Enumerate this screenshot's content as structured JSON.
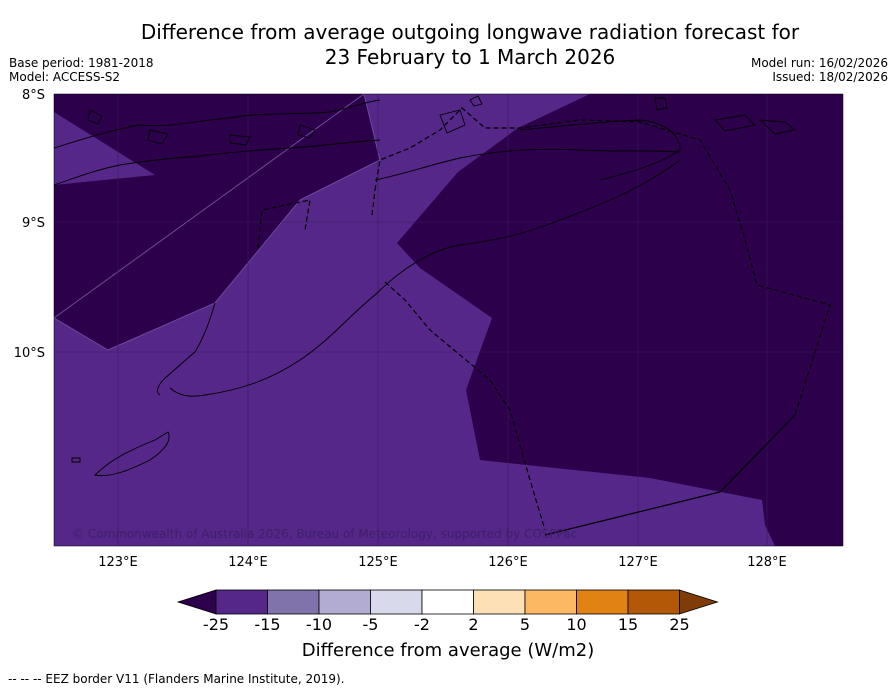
{
  "header": {
    "title_line1": "Difference from average outgoing longwave radiation forecast for",
    "title_line2": "23 February to 1 March 2026",
    "base_period": "Base period: 1981-2018",
    "model": "Model: ACCESS-S2",
    "model_run": "Model run: 16/02/2026",
    "issued": "Issued: 18/02/2026"
  },
  "chart_data": {
    "type": "heatmap",
    "title": "Difference from average outgoing longwave radiation forecast for 23 February to 1 March 2026",
    "xlabel": "",
    "ylabel": "",
    "xlim": [
      122.5,
      128.6
    ],
    "ylim": [
      -11.5,
      -8.0
    ],
    "x_ticks": [
      "123°E",
      "124°E",
      "125°E",
      "126°E",
      "127°E",
      "128°E"
    ],
    "y_ticks": [
      "8°S",
      "9°S",
      "10°S"
    ],
    "regions": [
      {
        "name": "background",
        "category": "-25 to -15",
        "color": "#542788"
      },
      {
        "name": "west-anomaly",
        "category": "< -25",
        "color": "#2d004b"
      },
      {
        "name": "east-anomaly",
        "category": "< -25",
        "color": "#2d004b"
      }
    ],
    "watermark": "© Commonwealth of Australia 2026, Bureau of Meteorology, supported by COSPPac",
    "colorbar": {
      "label": "Difference from average (W/m2)",
      "ticks": [
        "-25",
        "-15",
        "-10",
        "-5",
        "-2",
        "2",
        "5",
        "10",
        "15",
        "25"
      ],
      "colors": [
        "#542788",
        "#8073ac",
        "#b2abd2",
        "#d8daeb",
        "#ffffff",
        "#fee0b6",
        "#fdb863",
        "#e08214",
        "#b35806"
      ],
      "under_color": "#2d004b",
      "over_color": "#7f3b08"
    }
  },
  "footer": {
    "note": "--  --  -- EEZ border V11 (Flanders Marine Institute, 2019)."
  }
}
